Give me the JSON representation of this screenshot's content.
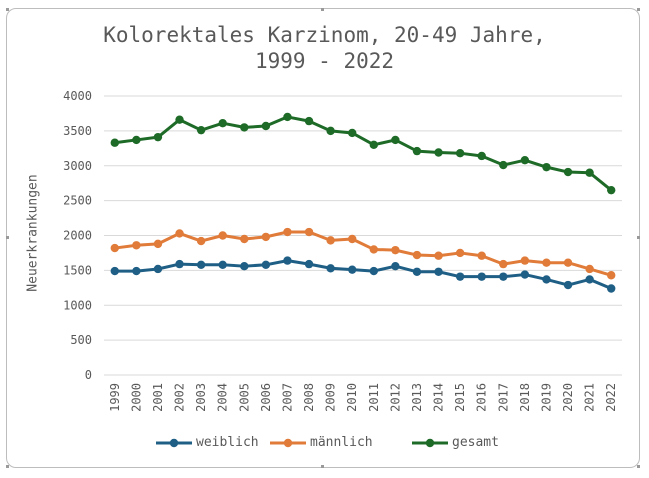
{
  "chart_data": {
    "type": "line",
    "title_line1": "Kolorektales Karzinom, 20-49 Jahre,",
    "title_line2": "1999 - 2022",
    "xlabel": "",
    "ylabel": "Neuerkrankungen",
    "ylim": [
      0,
      4000
    ],
    "yticks": [
      "0",
      "500",
      "1000",
      "1500",
      "2000",
      "2500",
      "3000",
      "3500",
      "4000"
    ],
    "categories": [
      "1999",
      "2000",
      "2001",
      "2002",
      "2003",
      "2004",
      "2005",
      "2006",
      "2007",
      "2008",
      "2009",
      "2010",
      "2011",
      "2012",
      "2013",
      "2014",
      "2015",
      "2016",
      "2017",
      "2018",
      "2019",
      "2020",
      "2021",
      "2022"
    ],
    "grid": true,
    "legend_position": "bottom",
    "series": [
      {
        "name": "weiblich",
        "color": "#1f5f86",
        "values": [
          1490,
          1490,
          1520,
          1590,
          1580,
          1580,
          1560,
          1580,
          1640,
          1590,
          1530,
          1510,
          1490,
          1560,
          1480,
          1480,
          1410,
          1410,
          1410,
          1440,
          1370,
          1290,
          1370,
          1240
        ]
      },
      {
        "name": "männlich",
        "color": "#e07b39",
        "values": [
          1820,
          1860,
          1880,
          2030,
          1920,
          2000,
          1950,
          1980,
          2050,
          2050,
          1930,
          1950,
          1800,
          1790,
          1720,
          1710,
          1750,
          1710,
          1590,
          1640,
          1610,
          1610,
          1520,
          1430
        ]
      },
      {
        "name": "gesamt",
        "color": "#1e6b28",
        "values": [
          3330,
          3370,
          3410,
          3660,
          3510,
          3610,
          3550,
          3570,
          3700,
          3640,
          3500,
          3470,
          3300,
          3370,
          3210,
          3190,
          3180,
          3140,
          3010,
          3080,
          2980,
          2910,
          2900,
          2650
        ]
      }
    ]
  }
}
